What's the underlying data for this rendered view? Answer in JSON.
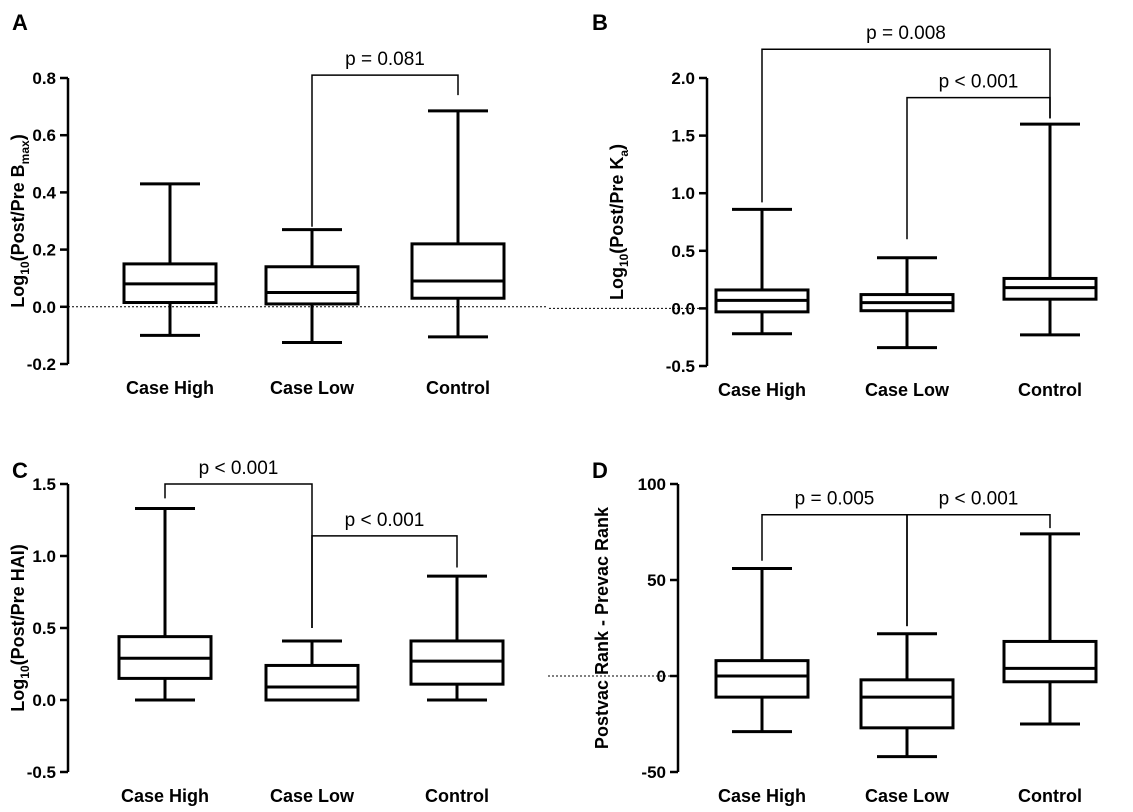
{
  "chart_data": [
    {
      "panel": "A",
      "type": "box",
      "ylabel": {
        "pre": "Log",
        "sub": "10",
        "mid": "(Post/Pre B",
        "sub2": "max",
        "post": ")"
      },
      "ylim": [
        -0.2,
        0.8
      ],
      "yticks": [
        -0.2,
        0.0,
        0.2,
        0.4,
        0.6,
        0.8
      ],
      "ytick_labels": [
        "-0.2",
        "0.0",
        "0.2",
        "0.4",
        "0.6",
        "0.8"
      ],
      "categories": [
        "Case High",
        "Case Low",
        "Control"
      ],
      "boxes": [
        {
          "min": -0.1,
          "q1": 0.015,
          "median": 0.08,
          "q3": 0.15,
          "max": 0.43
        },
        {
          "min": -0.125,
          "q1": 0.01,
          "median": 0.05,
          "q3": 0.14,
          "max": 0.27
        },
        {
          "min": -0.105,
          "q1": 0.03,
          "median": 0.09,
          "q3": 0.22,
          "max": 0.685
        }
      ],
      "zero_line": true,
      "comparisons": [
        {
          "from": 1,
          "to": 2,
          "from_y": 0.28,
          "to_y": 0.74,
          "bracket_y": 0.81,
          "label": "p = 0.081"
        }
      ]
    },
    {
      "panel": "B",
      "type": "box",
      "ylabel": {
        "pre": "Log",
        "sub": "10",
        "mid": "(Post/Pre K",
        "sub2": "a",
        "post": ")"
      },
      "ylim": [
        -0.5,
        2.0
      ],
      "yticks": [
        -0.5,
        0.0,
        0.5,
        1.0,
        1.5,
        2.0
      ],
      "ytick_labels": [
        "-0.5",
        "0.0",
        "0.5",
        "1.0",
        "1.5",
        "2.0"
      ],
      "categories": [
        "Case High",
        "Case Low",
        "Control"
      ],
      "boxes": [
        {
          "min": -0.22,
          "q1": -0.03,
          "median": 0.07,
          "q3": 0.16,
          "max": 0.86
        },
        {
          "min": -0.34,
          "q1": -0.02,
          "median": 0.05,
          "q3": 0.12,
          "max": 0.44
        },
        {
          "min": -0.23,
          "q1": 0.08,
          "median": 0.18,
          "q3": 0.26,
          "max": 1.6
        }
      ],
      "zero_line": true,
      "comparisons": [
        {
          "from": 0,
          "to": 2,
          "from_y": 0.92,
          "to_y": 1.65,
          "bracket_y": 2.25,
          "label": "p = 0.008"
        },
        {
          "from": 1,
          "to": 2,
          "from_y": 0.6,
          "to_y": 1.65,
          "bracket_y": 1.83,
          "label": "p < 0.001"
        }
      ]
    },
    {
      "panel": "C",
      "type": "box",
      "ylabel": {
        "pre": "Log",
        "sub": "10",
        "mid": "(Post/Pre HAI)",
        "sub2": "",
        "post": ""
      },
      "ylim": [
        -0.5,
        1.5
      ],
      "yticks": [
        -0.5,
        0.0,
        0.5,
        1.0,
        1.5
      ],
      "ytick_labels": [
        "-0.5",
        "0.0",
        "0.5",
        "1.0",
        "1.5"
      ],
      "categories": [
        "Case High",
        "Case Low",
        "Control"
      ],
      "boxes": [
        {
          "min": 0.0,
          "q1": 0.15,
          "median": 0.29,
          "q3": 0.44,
          "max": 1.33
        },
        {
          "min": 0.0,
          "q1": 0.0,
          "median": 0.09,
          "q3": 0.24,
          "max": 0.41
        },
        {
          "min": 0.0,
          "q1": 0.11,
          "median": 0.27,
          "q3": 0.41,
          "max": 0.86
        }
      ],
      "zero_line": false,
      "comparisons": [
        {
          "from": 0,
          "to": 1,
          "from_y": 1.4,
          "to_y": 0.5,
          "bracket_y": 1.5,
          "label": "p < 0.001"
        },
        {
          "from": 1,
          "to": 2,
          "from_y": 0.5,
          "to_y": 0.92,
          "bracket_y": 1.14,
          "label": "p < 0.001"
        }
      ]
    },
    {
      "panel": "D",
      "type": "box",
      "ylabel": {
        "pre": "Postvac Rank - Prevac Rank",
        "sub": "",
        "mid": "",
        "sub2": "",
        "post": ""
      },
      "ylim": [
        -50,
        100
      ],
      "yticks": [
        -50,
        0,
        50,
        100
      ],
      "ytick_labels": [
        "-50",
        "0",
        "50",
        "100"
      ],
      "categories": [
        "Case High",
        "Case Low",
        "Control"
      ],
      "boxes": [
        {
          "min": -29,
          "q1": -11,
          "median": 0,
          "q3": 8,
          "max": 56
        },
        {
          "min": -42,
          "q1": -27,
          "median": -11,
          "q3": -2,
          "max": 22
        },
        {
          "min": -25,
          "q1": -3,
          "median": 4,
          "q3": 18,
          "max": 74
        }
      ],
      "zero_line": true,
      "comparisons": [
        {
          "from": 0,
          "to": 1,
          "from_y": 60,
          "to_y": 26,
          "bracket_y": 84,
          "label": "p = 0.005"
        },
        {
          "from": 1,
          "to": 2,
          "from_y": 26,
          "to_y": 77,
          "bracket_y": 84,
          "label": "p < 0.001"
        }
      ]
    }
  ]
}
